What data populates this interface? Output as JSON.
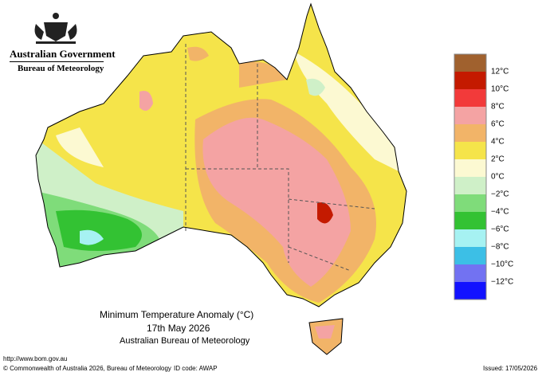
{
  "header": {
    "government": "Australian Government",
    "agency": "Bureau of Meteorology"
  },
  "legend": {
    "colors": [
      "#a0612e",
      "#c41a00",
      "#f23a3a",
      "#f4a3a3",
      "#f2b468",
      "#f5e44a",
      "#fcf9d2",
      "#cff0c8",
      "#7fdc7a",
      "#33c233",
      "#a6f2f2",
      "#3cbfe6",
      "#7272f2",
      "#1212ff"
    ],
    "labels": [
      "12°C",
      "10°C",
      "8°C",
      "6°C",
      "4°C",
      "2°C",
      "0°C",
      "−2°C",
      "−4°C",
      "−6°C",
      "−8°C",
      "−10°C",
      "−12°C"
    ]
  },
  "title": {
    "line1": "Minimum Temperature Anomaly (°C)",
    "line2": "17th May 2026",
    "line3": "Australian Bureau of Meteorology"
  },
  "footer": {
    "url": "http://www.bom.gov.au",
    "copyright": "© Commonwealth of Australia 2026, Bureau of Meteorology",
    "id_code": "ID code: AWAP",
    "issued": "Issued: 17/05/2026"
  }
}
